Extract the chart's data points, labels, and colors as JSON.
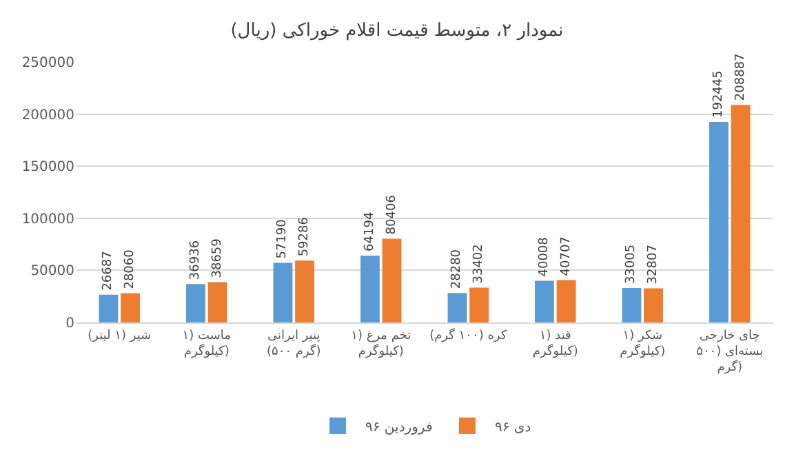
{
  "chart_data": {
    "type": "bar",
    "title": "نمودار ۲، متوسط قیمت اقلام خوراکی (ریال)",
    "categories": [
      "شیر (۱ لیتر)",
      "ماست (۱ کیلوگرم)",
      "پنیر ایرانی (۵۰۰ گرم)",
      "تخم مرغ (۱ کیلوگرم)",
      "کره (۱۰۰ گرم)",
      "قند (۱ کیلوگرم)",
      "شکر (۱ کیلوگرم)",
      "چای خارجی بسته‌ای (۵۰۰ گرم)"
    ],
    "series": [
      {
        "name": "فروردین ۹۶",
        "color": "#5b9bd5",
        "values": [
          26687,
          36936,
          57190,
          64194,
          28280,
          40008,
          33005,
          192445
        ]
      },
      {
        "name": "دی ۹۶",
        "color": "#ed7d31",
        "values": [
          28060,
          38659,
          59286,
          80406,
          33402,
          40707,
          32807,
          208887
        ]
      }
    ],
    "ylim": [
      0,
      250000
    ],
    "yticks": [
      0,
      50000,
      100000,
      150000,
      200000,
      250000
    ],
    "grid": "y",
    "legend": "bottom",
    "data_labels": true
  }
}
